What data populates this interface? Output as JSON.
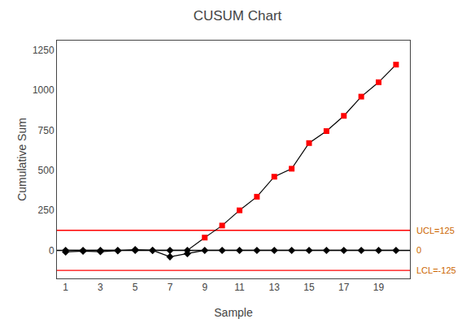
{
  "chart_data": {
    "type": "line",
    "title": "CUSUM Chart",
    "x_label": "Sample",
    "y_label": "Cumulative Sum",
    "x": [
      1,
      2,
      3,
      4,
      5,
      6,
      7,
      8,
      9,
      10,
      11,
      12,
      13,
      14,
      15,
      16,
      17,
      18,
      19,
      20
    ],
    "series": [
      {
        "values": [
          0,
          0,
          0,
          0,
          0,
          0,
          0,
          0,
          80,
          155,
          250,
          335,
          460,
          510,
          670,
          745,
          840,
          960,
          1050,
          1160
        ],
        "color": "#000000",
        "line_style": "solid",
        "marker": "none"
      },
      {
        "values": [
          0,
          0,
          0,
          0,
          0,
          0,
          0,
          0,
          null,
          null,
          null,
          null,
          null,
          null,
          null,
          null,
          null,
          null,
          null,
          null
        ],
        "color": "#000000",
        "line_style": "none",
        "marker": "diamond"
      },
      {
        "values": [
          null,
          null,
          null,
          null,
          null,
          null,
          null,
          null,
          80,
          155,
          250,
          335,
          460,
          510,
          670,
          745,
          840,
          960,
          1050,
          1160
        ],
        "color": "#ff0000",
        "line_style": "none",
        "marker": "square"
      },
      {
        "values": [
          -10,
          -5,
          -8,
          -3,
          5,
          0,
          -40,
          -20,
          0,
          0,
          0,
          0,
          0,
          0,
          0,
          0,
          0,
          0,
          0,
          0
        ],
        "color": "#000000",
        "line_style": "solid",
        "marker": "diamond"
      }
    ],
    "reference_lines": [
      {
        "value": 125,
        "label": "UCL=125",
        "color": "#ff0000",
        "label_color": "#cc6600"
      },
      {
        "value": 0,
        "label": "0",
        "color": "#000000",
        "label_color": "#cc6600"
      },
      {
        "value": -125,
        "label": "LCL=-125",
        "color": "#ff0000",
        "label_color": "#cc6600"
      }
    ],
    "xlim": [
      0.5,
      20.8
    ],
    "xticks": [
      1,
      3,
      5,
      7,
      9,
      11,
      13,
      15,
      17,
      19
    ],
    "ylim": [
      -175,
      1310
    ],
    "yticks": [
      0,
      250,
      500,
      750,
      1000,
      1250
    ],
    "grid": false
  }
}
